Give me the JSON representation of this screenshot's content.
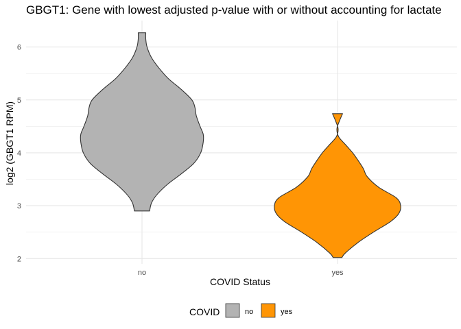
{
  "chart_data": {
    "type": "violin",
    "title": "GBGT1: Gene with lowest adjusted p-value with or without accounting for lactate",
    "xlabel": "COVID Status",
    "ylabel": "log2 (GBGT1 RPM)",
    "categories": [
      "no",
      "yes"
    ],
    "ylim": [
      1.9,
      6.5
    ],
    "y_ticks": [
      2,
      3,
      4,
      5,
      6
    ],
    "grid": true,
    "legend": {
      "title": "COVID",
      "position": "bottom",
      "items": [
        {
          "label": "no",
          "color": "#b3b3b3"
        },
        {
          "label": "yes",
          "color": "#ff9505"
        }
      ]
    },
    "series": [
      {
        "category": "no",
        "color": "#b3b3b3",
        "min": 2.9,
        "max": 6.27,
        "density": [
          [
            2.9,
            0.12
          ],
          [
            3.05,
            0.15
          ],
          [
            3.2,
            0.23
          ],
          [
            3.4,
            0.4
          ],
          [
            3.6,
            0.62
          ],
          [
            3.8,
            0.82
          ],
          [
            4.0,
            0.93
          ],
          [
            4.2,
            0.97
          ],
          [
            4.35,
            0.97
          ],
          [
            4.5,
            0.92
          ],
          [
            4.7,
            0.86
          ],
          [
            4.85,
            0.84
          ],
          [
            5.0,
            0.79
          ],
          [
            5.2,
            0.62
          ],
          [
            5.4,
            0.42
          ],
          [
            5.6,
            0.27
          ],
          [
            5.8,
            0.15
          ],
          [
            6.0,
            0.08
          ],
          [
            6.15,
            0.06
          ],
          [
            6.27,
            0.06
          ]
        ]
      },
      {
        "category": "yes",
        "color": "#ff9505",
        "min": 2.02,
        "max": 4.74,
        "density": [
          [
            2.02,
            0.07
          ],
          [
            2.1,
            0.12
          ],
          [
            2.3,
            0.32
          ],
          [
            2.5,
            0.57
          ],
          [
            2.7,
            0.84
          ],
          [
            2.85,
            0.97
          ],
          [
            3.0,
            1.0
          ],
          [
            3.15,
            0.93
          ],
          [
            3.35,
            0.65
          ],
          [
            3.55,
            0.47
          ],
          [
            3.7,
            0.41
          ],
          [
            3.85,
            0.33
          ],
          [
            4.0,
            0.24
          ],
          [
            4.15,
            0.13
          ],
          [
            4.3,
            0.02
          ],
          [
            4.45,
            -0.01
          ],
          [
            4.6,
            0.03
          ],
          [
            4.74,
            0.08
          ]
        ]
      }
    ]
  }
}
